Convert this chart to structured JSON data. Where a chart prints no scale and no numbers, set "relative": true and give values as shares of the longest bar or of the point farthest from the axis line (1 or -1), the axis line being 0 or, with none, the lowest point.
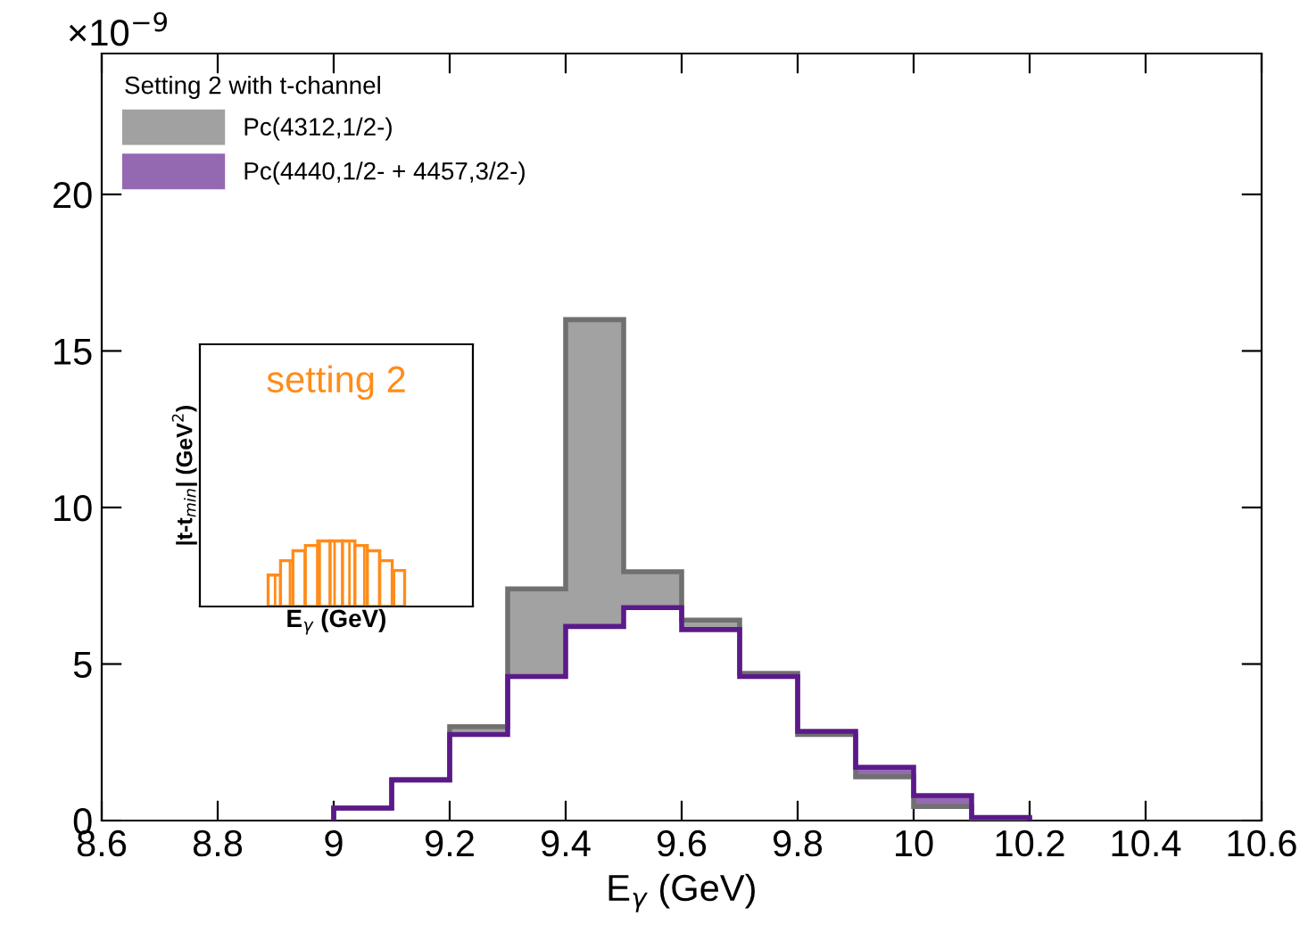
{
  "chart_data": [
    {
      "type": "histogram",
      "xlabel": "E$_{γ}$ (GeV)",
      "legend_title": "Setting 2 with t-channel",
      "legend": "top left",
      "bins": [
        9.0,
        9.1,
        9.2,
        9.3,
        9.4,
        9.5,
        9.6,
        9.7,
        9.8,
        9.9,
        10.0,
        10.1,
        10.2
      ],
      "series": [
        {
          "name": "Pc(4312,1/2-)",
          "color": "#707070",
          "values": [
            0.4,
            1.3,
            3.0,
            7.4,
            16.0,
            7.95,
            6.4,
            4.7,
            2.75,
            1.4,
            0.45,
            0.05
          ]
        },
        {
          "name": "Pc(4440,1/2- + 4457,3/2-)",
          "color": "#5b1a8a",
          "values": [
            0.4,
            1.3,
            2.75,
            4.6,
            6.2,
            6.8,
            6.1,
            4.6,
            2.85,
            1.7,
            0.8,
            0.1
          ]
        }
      ],
      "xlim": [
        8.6,
        10.6
      ],
      "xticks": [
        8.6,
        8.8,
        9,
        9.2,
        9.4,
        9.6,
        9.8,
        10,
        10.2,
        10.4,
        10.6
      ],
      "ylim": [
        0,
        24.5
      ],
      "yticks": [
        0,
        5,
        10,
        15,
        20
      ],
      "annotations": [
        "×10$^{−9}$"
      ],
      "grid": false
    },
    {
      "type": "bar",
      "relative": true,
      "title": "setting 2",
      "xlabel": "E$_{γ}$ (GeV)",
      "ylabel": "|t-t$_{min}$| (GeV$^{2}$)",
      "categories": [
        null,
        null,
        null,
        null,
        null,
        null,
        null,
        null,
        null,
        null,
        null
      ],
      "values": [
        0.48,
        0.7,
        0.85,
        0.93,
        1,
        1,
        1,
        0.93,
        0.85,
        0.7,
        0.55
      ],
      "color": "#ff8c1a"
    }
  ]
}
